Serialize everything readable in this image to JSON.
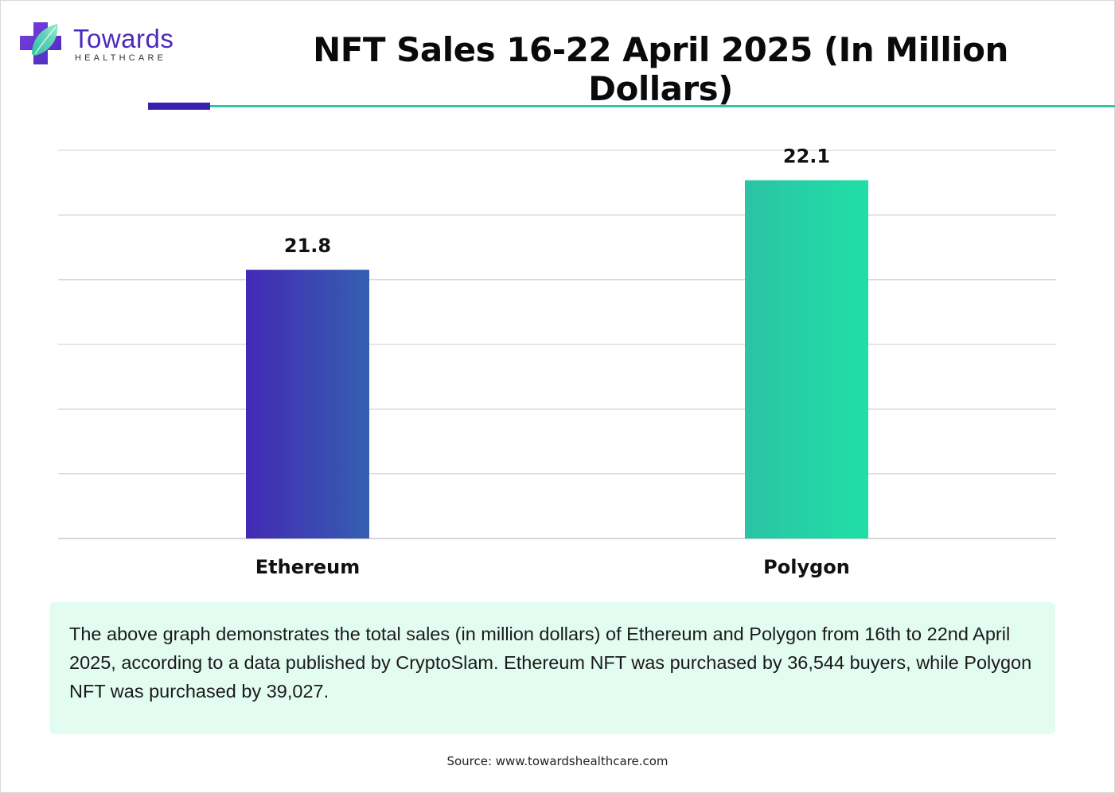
{
  "brand": {
    "name": "Towards",
    "subtitle": "HEALTHCARE",
    "colors": {
      "primary": "#4a2bbd",
      "accent": "#2ec7a1"
    }
  },
  "header": {
    "title": "NFT Sales 16-22 April 2025 (In Million Dollars)"
  },
  "chart_data": {
    "type": "bar",
    "title": "NFT Sales 16-22 April 2025 (In Million Dollars)",
    "xlabel": "",
    "ylabel": "",
    "categories": [
      "Ethereum",
      "Polygon"
    ],
    "values": [
      21.8,
      22.1
    ],
    "value_labels": [
      "21.8",
      "22.1"
    ],
    "ylim": [
      20.9,
      22.2
    ],
    "gridlines": 7,
    "grid": true,
    "legend": "none",
    "bar_colors": [
      {
        "from": "#4329b4",
        "to": "#355fb0"
      },
      {
        "from": "#2bc3a5",
        "to": "#20dfa6"
      }
    ]
  },
  "note": {
    "text": "The above graph demonstrates the total sales (in million dollars) of Ethereum and Polygon from 16th to 22nd April 2025, according to a data published by CryptoSlam. Ethereum NFT was purchased by 36,544 buyers, while Polygon NFT was purchased by 39,027."
  },
  "footer": {
    "source": "Source: www.towardshealthcare.com"
  }
}
